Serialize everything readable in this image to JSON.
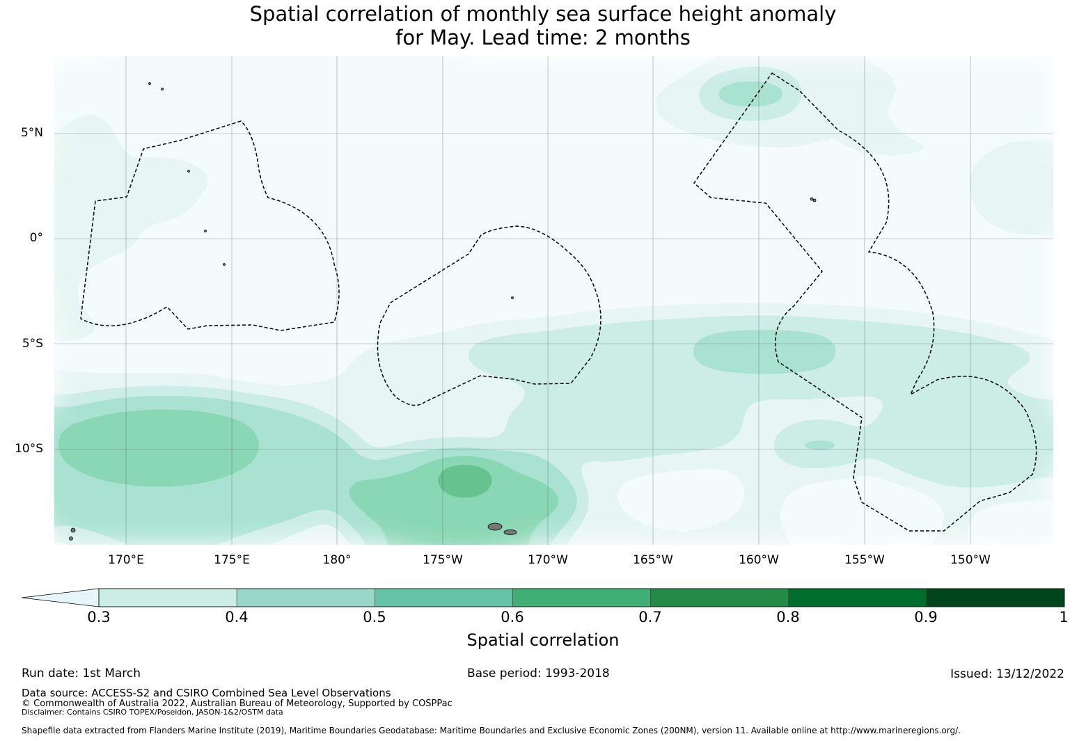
{
  "title": {
    "line1": "Spatial correlation of monthly sea surface height anomaly",
    "line2": "for May. Lead time: 2 months"
  },
  "map": {
    "lat_labels": [
      "5°N",
      "0°",
      "5°S",
      "10°S"
    ],
    "lon_labels": [
      "170°E",
      "175°E",
      "180°",
      "175°W",
      "170°W",
      "165°W",
      "160°W",
      "155°W",
      "150°W"
    ],
    "lon_range": [
      166.6,
      213.9
    ],
    "lat_range": [
      -14.5,
      8.7
    ],
    "levels": [
      0.3,
      0.4,
      0.5,
      0.6,
      0.7,
      0.8,
      0.9,
      1.0
    ],
    "colors": [
      "#e5f5f9",
      "#ccece6",
      "#99d8c9",
      "#66c2a4",
      "#41ae76",
      "#238b45",
      "#006d2c",
      "#00441b"
    ]
  },
  "colorbar": {
    "ticks": [
      "0.3",
      "0.4",
      "0.5",
      "0.6",
      "0.7",
      "0.8",
      "0.9",
      "1"
    ],
    "label": "Spatial correlation"
  },
  "footer": {
    "run_date": "Run date: 1st March",
    "base_period": "Base period: 1993-2018",
    "issued": "Issued: 13/12/2022",
    "data_source": "Data source: ACCESS-S2 and CSIRO Combined Sea Level Observations",
    "copyright": "© Commonwealth of Australia 2022, Australian Bureau of Meteorology, Supported by COSPPac",
    "disclaimer": "Disclaimer: Contains CSIRO TOPEX/Poseidon, JASON-1&2/OSTM data",
    "shapefile": "Shapefile data extracted from Flanders Marine Institute (2019), Maritime Boundaries Geodatabase: Maritime Boundaries and Exclusive Economic Zones (200NM), version 11. Available online at http://www.marineregions.org/."
  }
}
